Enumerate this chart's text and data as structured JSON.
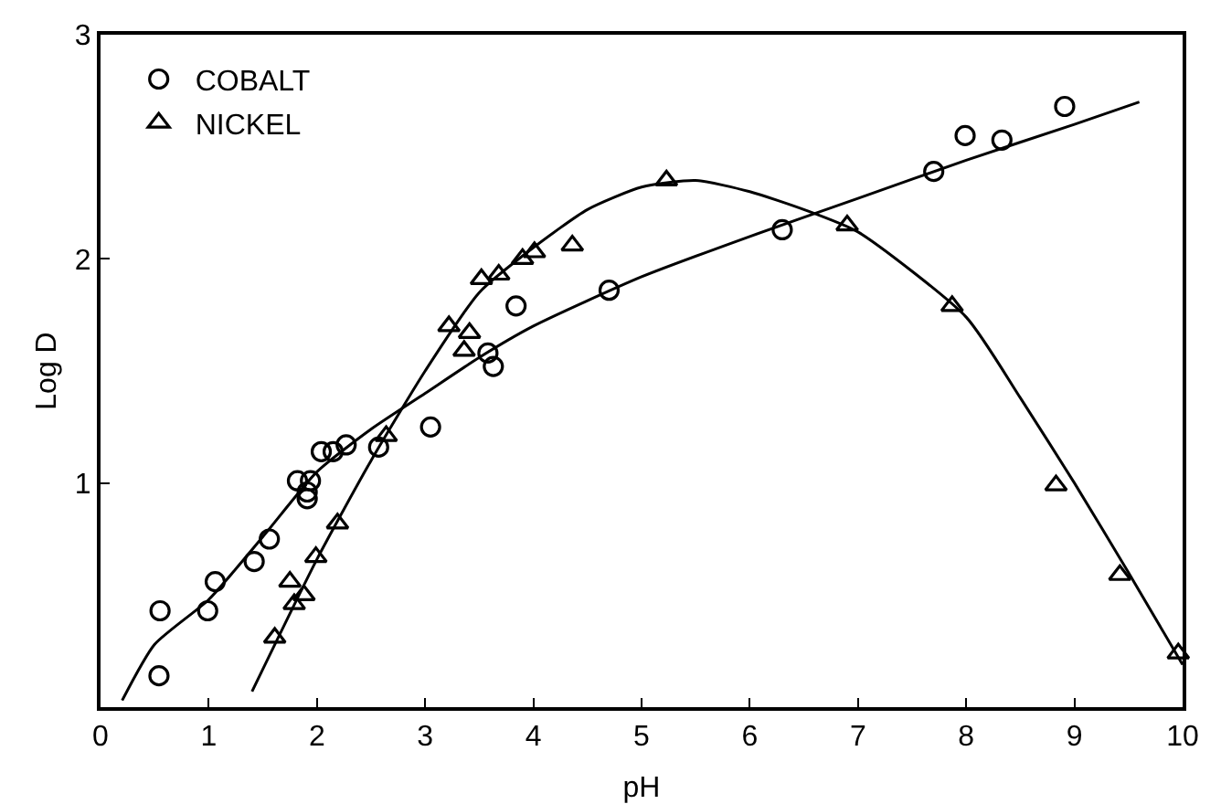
{
  "chart_data": {
    "type": "scatter",
    "xlabel": "pH",
    "ylabel": "Log D",
    "xlim": [
      0,
      10
    ],
    "ylim": [
      0,
      3
    ],
    "xticks": [
      0,
      1,
      2,
      3,
      4,
      5,
      6,
      7,
      8,
      9,
      10
    ],
    "yticks": [
      {
        "value": 0,
        "label": null
      },
      1,
      2,
      3
    ],
    "grid": false,
    "legend": "top left",
    "series": [
      {
        "name": "COBALT",
        "color": "#000000",
        "marker": "circle",
        "x": [
          0.54,
          0.55,
          0.99,
          1.06,
          1.42,
          1.56,
          1.82,
          1.94,
          1.91,
          1.91,
          2.04,
          2.15,
          2.27,
          2.57,
          3.05,
          3.58,
          3.63,
          3.84,
          4.7,
          6.3,
          7.7,
          7.99,
          8.33,
          8.91
        ],
        "values": [
          0.14,
          0.43,
          0.43,
          0.56,
          0.65,
          0.75,
          1.01,
          1.01,
          0.96,
          0.93,
          1.14,
          1.14,
          1.17,
          1.16,
          1.25,
          1.58,
          1.52,
          1.79,
          1.86,
          2.13,
          2.39,
          2.55,
          2.53,
          2.68
        ]
      },
      {
        "name": "NICKEL",
        "color": "#000000",
        "marker": "triangle",
        "x": [
          1.61,
          1.75,
          1.79,
          1.88,
          1.99,
          2.19,
          2.64,
          3.22,
          3.36,
          3.41,
          3.52,
          3.68,
          3.9,
          4.01,
          4.36,
          5.23,
          6.9,
          7.87,
          8.83,
          9.42,
          9.96
        ],
        "values": [
          0.31,
          0.56,
          0.46,
          0.5,
          0.67,
          0.82,
          1.21,
          1.7,
          1.59,
          1.67,
          1.91,
          1.93,
          2.0,
          2.03,
          2.06,
          2.35,
          2.15,
          1.79,
          0.99,
          0.59,
          0.24
        ]
      },
      {
        "type": "line",
        "color": "#000000",
        "line_style": "solid",
        "x": [
          0.2,
          0.5,
          1,
          1.5,
          2,
          2.5,
          3,
          3.5,
          4,
          5,
          6,
          7,
          8,
          9,
          9.6
        ],
        "values": [
          0.03,
          0.28,
          0.48,
          0.76,
          1.05,
          1.24,
          1.4,
          1.56,
          1.7,
          1.92,
          2.1,
          2.27,
          2.44,
          2.6,
          2.7
        ]
      },
      {
        "type": "line",
        "color": "#000000",
        "line_style": "solid",
        "x": [
          1.4,
          2,
          2.5,
          3,
          3.5,
          4,
          4.5,
          5,
          5.5,
          6,
          6.5,
          7,
          8,
          8.5,
          9,
          9.5,
          10
        ],
        "values": [
          0.07,
          0.66,
          1.1,
          1.5,
          1.85,
          2.05,
          2.22,
          2.32,
          2.35,
          2.3,
          2.22,
          2.12,
          1.74,
          1.38,
          1.0,
          0.6,
          0.19
        ]
      }
    ]
  }
}
